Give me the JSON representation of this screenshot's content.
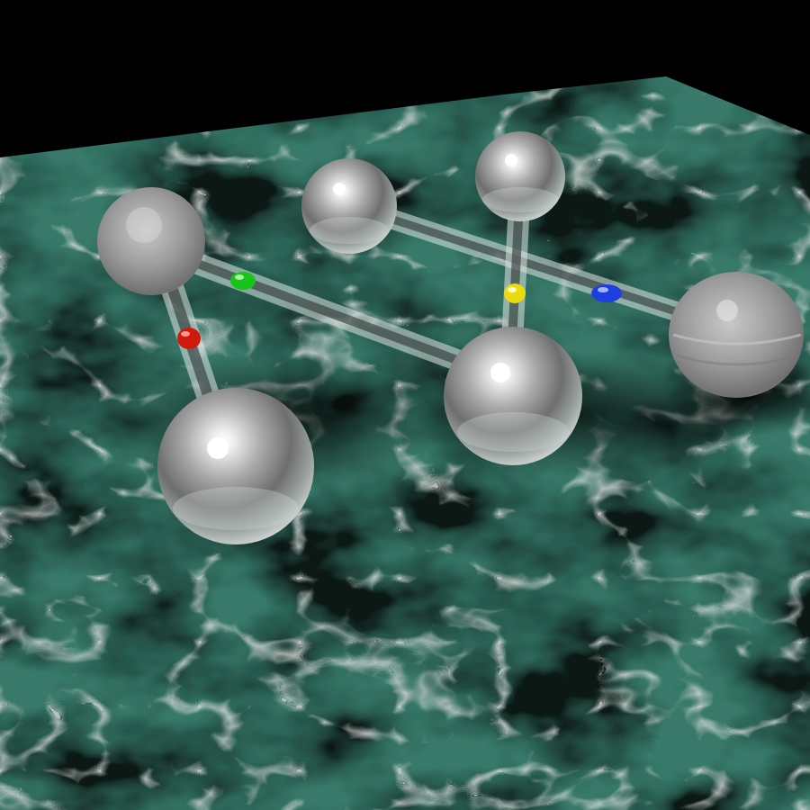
{
  "scene": {
    "subject": "glass-ball-and-stick-molecule",
    "background_color": "#000000",
    "floor_color": "#3f8a78",
    "floor_dark_color": "#0c1a17",
    "vein_color": "#e8f2ef",
    "sphere_count": 6,
    "rod_count": 4,
    "bead_colors": {
      "red": "#d01a10",
      "green": "#18c41c",
      "yellow": "#e8dc10",
      "blue": "#1f3ee0"
    }
  }
}
